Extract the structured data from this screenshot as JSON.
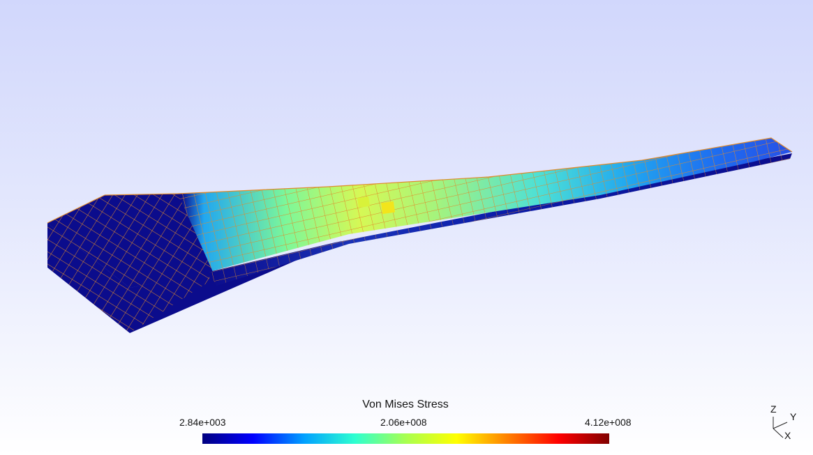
{
  "legend": {
    "title": "Von Mises Stress",
    "min_label": "2.84e+003",
    "mid_label": "2.06e+008",
    "max_label": "4.12e+008",
    "colormap": [
      "#000080",
      "#0000ff",
      "#00a0ff",
      "#2dffd0",
      "#a8ff50",
      "#ffff00",
      "#ff8000",
      "#ff0000",
      "#800000"
    ]
  },
  "axes": {
    "z_label": "Z",
    "y_label": "Y",
    "x_label": "X"
  },
  "colors": {
    "background_top": "#d1d7fc",
    "background_bottom": "#ffffff",
    "mesh_edges": "#e08a2a",
    "low_stress": "#0b0c8c"
  }
}
